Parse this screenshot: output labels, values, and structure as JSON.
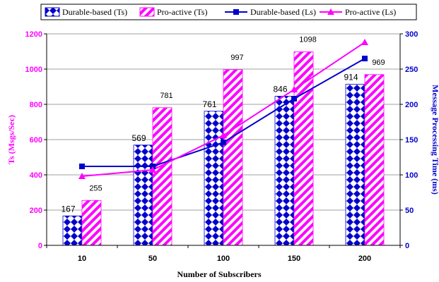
{
  "chart_data": {
    "type": "bar",
    "categories": [
      "10",
      "50",
      "100",
      "150",
      "200"
    ],
    "series": [
      {
        "name": "Durable-based (Ts)",
        "kind": "bar",
        "axis": "left",
        "values": [
          167,
          569,
          761,
          846,
          914
        ]
      },
      {
        "name": "Pro-active (Ts)",
        "kind": "bar",
        "axis": "left",
        "values": [
          255,
          781,
          997,
          1098,
          969
        ]
      },
      {
        "name": "Durable-based (Ls)",
        "kind": "line",
        "axis": "right",
        "values": [
          112,
          112,
          146,
          208,
          265
        ]
      },
      {
        "name": "Pro-active (Ls)",
        "kind": "line",
        "axis": "right",
        "values": [
          98,
          107,
          156,
          221,
          288
        ]
      }
    ],
    "xlabel": "Number of Subscribers",
    "ylabel": "Ts (Msgs/Sec)",
    "y2label": "Message Processing Time (ms)",
    "ylim": [
      0,
      1200
    ],
    "y2lim": [
      0,
      300
    ],
    "yticks": [
      "0",
      "200",
      "400",
      "600",
      "800",
      "1000",
      "1200"
    ],
    "y2ticks": [
      "0",
      "50",
      "100",
      "150",
      "200",
      "250",
      "300"
    ],
    "grid": true,
    "legend": "top",
    "colors": {
      "durable_bar": "#0000cc",
      "proactive_bar": "#ff00ff",
      "durable_line": "#0000cc",
      "proactive_line": "#ff00ff",
      "left_axis_title": "#ff00ff",
      "right_axis_title": "#0000cc"
    }
  }
}
